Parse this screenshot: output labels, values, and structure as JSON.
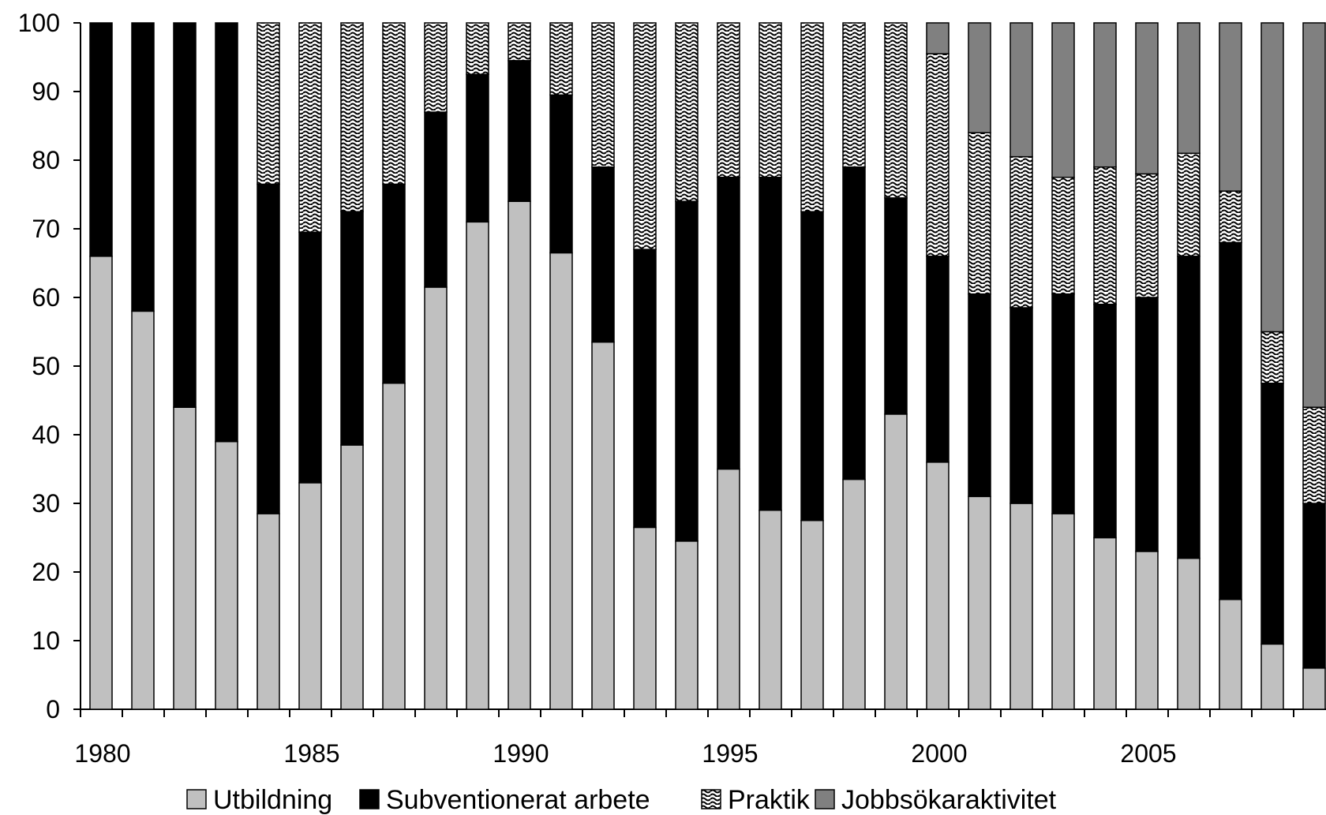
{
  "chart_data": {
    "type": "bar",
    "stacked": true,
    "title": "",
    "xlabel": "",
    "ylabel": "",
    "ylim": [
      0,
      100
    ],
    "yticks": [
      0,
      10,
      20,
      30,
      40,
      50,
      60,
      70,
      80,
      90,
      100
    ],
    "x_tick_labels": [
      "1980",
      "1985",
      "1990",
      "1995",
      "2000",
      "2005"
    ],
    "legend_position": "bottom",
    "grid": false,
    "categories": [
      1980,
      1981,
      1982,
      1983,
      1984,
      1985,
      1986,
      1987,
      1988,
      1989,
      1990,
      1991,
      1992,
      1993,
      1994,
      1995,
      1996,
      1997,
      1998,
      1999,
      2000,
      2001,
      2002,
      2003,
      2004,
      2005,
      2006,
      2007,
      2008,
      2009
    ],
    "series": [
      {
        "name": "Utbildning",
        "color": "#c0c0c0",
        "pattern": "solid",
        "values": [
          66,
          58,
          44,
          39,
          28.5,
          33,
          38.5,
          47.5,
          61.5,
          71,
          74,
          66.5,
          53.5,
          26.5,
          24.5,
          35,
          29,
          27.5,
          33.5,
          43,
          36,
          31,
          30,
          28.5,
          25,
          23,
          22,
          16,
          9.5,
          6
        ]
      },
      {
        "name": "Subventionerat arbete",
        "color": "#000000",
        "pattern": "solid",
        "values": [
          34,
          42,
          56,
          61,
          48,
          36.5,
          34,
          29,
          25.5,
          21.5,
          20.5,
          23,
          25.5,
          40.5,
          49.5,
          42.5,
          48.5,
          45,
          45.5,
          31.5,
          30,
          29.5,
          28.5,
          32,
          34,
          37,
          44,
          52,
          38,
          24
        ]
      },
      {
        "name": "Praktik",
        "color": "#000000",
        "pattern": "wavy",
        "values": [
          0,
          0,
          0,
          0,
          23.5,
          30.5,
          27.5,
          23.5,
          13,
          7.5,
          5.5,
          10.5,
          21,
          33,
          26,
          22.5,
          22.5,
          27.5,
          21,
          25.5,
          29.5,
          23.5,
          22,
          17,
          20,
          18,
          15,
          7.5,
          7.5,
          14
        ]
      },
      {
        "name": "Jobbsökaraktivitet",
        "color": "#808080",
        "pattern": "solid",
        "values": [
          0,
          0,
          0,
          0,
          0,
          0,
          0,
          0,
          0,
          0,
          0,
          0,
          0,
          0,
          0,
          0,
          0,
          0,
          0,
          0,
          4.5,
          16,
          19.5,
          22.5,
          21,
          22,
          19,
          24.5,
          45,
          56
        ]
      }
    ]
  }
}
